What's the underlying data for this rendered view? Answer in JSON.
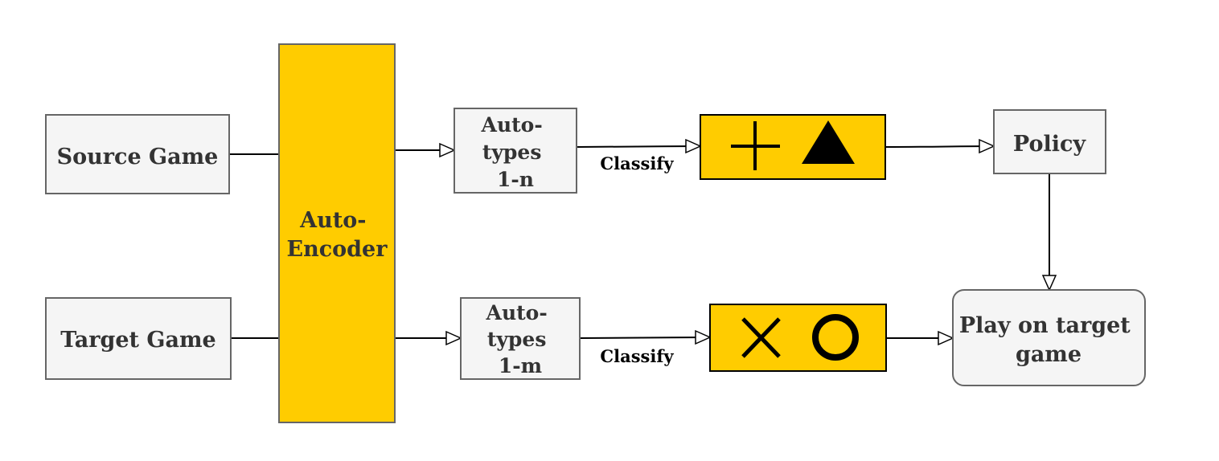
{
  "nodes": {
    "source_game": "Source Game",
    "target_game": "Target Game",
    "auto_encoder": [
      "Auto-",
      "Encoder"
    ],
    "auto_types_top": [
      "Auto-",
      "types",
      "1-n"
    ],
    "auto_types_bottom": [
      "Auto-",
      "types",
      "1-m"
    ],
    "policy": "Policy",
    "play_on_target": [
      "Play on target",
      "game"
    ]
  },
  "edges": {
    "classify_top": "Classify",
    "classify_bottom": "Classify"
  },
  "symbols": {
    "top": [
      "plus-icon",
      "triangle-icon"
    ],
    "bottom": [
      "cross-icon",
      "circle-icon"
    ]
  },
  "colors": {
    "box_fill": "#f5f5f5",
    "box_stroke": "#666666",
    "accent_fill": "#ffcc00",
    "accent_stroke": "#000000",
    "text": "#333333"
  }
}
